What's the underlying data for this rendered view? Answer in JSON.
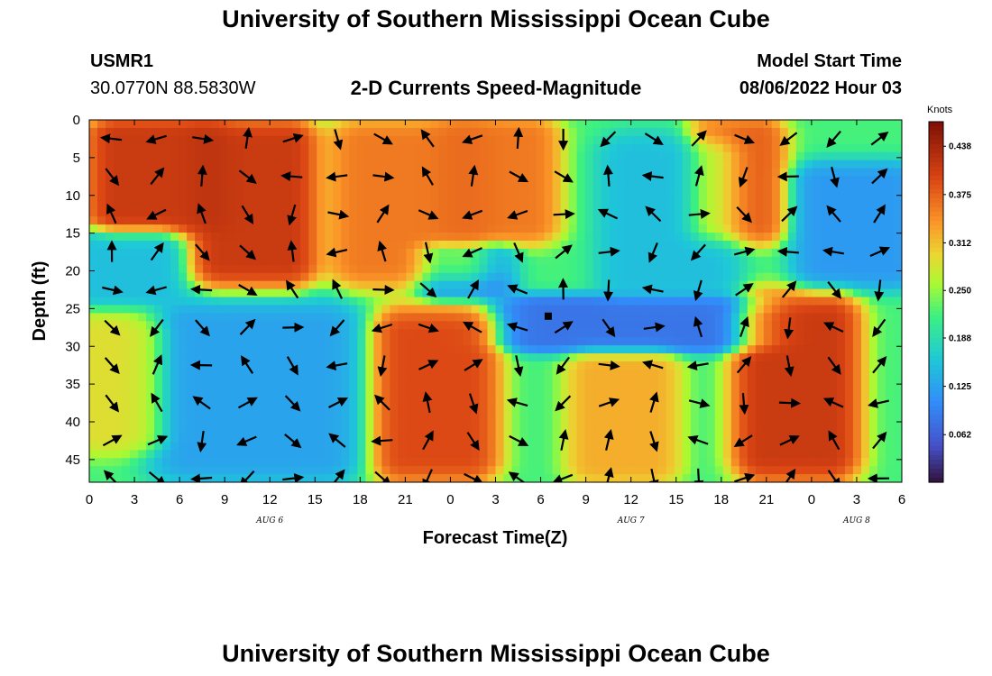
{
  "page_title": "University of Southern Mississippi Ocean Cube",
  "footer_title": "University of Southern Mississippi Ocean Cube",
  "station": {
    "id": "USMR1",
    "coords": "30.0770N  88.5830W"
  },
  "model": {
    "label": "Model Start Time",
    "value": "08/06/2022 Hour 03"
  },
  "chart_data": {
    "type": "heatmap",
    "title": "2-D Currents Speed-Magnitude",
    "xlabel": "Forecast Time(Z)",
    "ylabel": "Depth (ft)",
    "xlim": [
      0,
      54
    ],
    "ylim": [
      0,
      48
    ],
    "x_tick_labels": [
      "0",
      "3",
      "6",
      "9",
      "12",
      "15",
      "18",
      "21",
      "0",
      "3",
      "6",
      "9",
      "12",
      "15",
      "18",
      "21",
      "0",
      "3",
      "6"
    ],
    "y_ticks": [
      0,
      5,
      10,
      15,
      20,
      25,
      30,
      35,
      40,
      45
    ],
    "date_labels": [
      {
        "text": "AUG 6",
        "hour": 12
      },
      {
        "text": "AUG 7",
        "hour": 36
      },
      {
        "text": "AUG 8",
        "hour": 51
      }
    ],
    "colorbar": {
      "title": "Knots",
      "min": 0.0,
      "max": 0.47,
      "tick_labels": [
        "0.438",
        "0.375",
        "0.312",
        "0.250",
        "0.188",
        "0.125",
        "0.062"
      ],
      "tick_values": [
        0.438,
        0.375,
        0.312,
        0.25,
        0.188,
        0.125,
        0.062
      ]
    },
    "speed_regions_knots": [
      {
        "hours": [
          1,
          8
        ],
        "depth_ft": [
          0,
          15
        ],
        "speed": 0.44
      },
      {
        "hours": [
          8,
          14
        ],
        "depth_ft": [
          0,
          22
        ],
        "speed": 0.44
      },
      {
        "hours": [
          0,
          5
        ],
        "depth_ft": [
          15,
          24
        ],
        "speed": 0.14
      },
      {
        "hours": [
          5,
          17
        ],
        "depth_ft": [
          24,
          48
        ],
        "speed": 0.11
      },
      {
        "hours": [
          0,
          4
        ],
        "depth_ft": [
          26,
          44
        ],
        "speed": 0.3
      },
      {
        "hours": [
          17,
          26
        ],
        "depth_ft": [
          0,
          22
        ],
        "speed": 0.38
      },
      {
        "hours": [
          20,
          26
        ],
        "depth_ft": [
          25,
          48
        ],
        "speed": 0.42
      },
      {
        "hours": [
          24,
          30
        ],
        "depth_ft": [
          0,
          16
        ],
        "speed": 0.38
      },
      {
        "hours": [
          23,
          27
        ],
        "depth_ft": [
          17,
          23
        ],
        "speed": 0.08
      },
      {
        "hours": [
          28,
          44
        ],
        "depth_ft": [
          24,
          30
        ],
        "speed": 0.06
      },
      {
        "hours": [
          35,
          42
        ],
        "depth_ft": [
          2,
          24
        ],
        "speed": 0.14
      },
      {
        "hours": [
          33,
          38
        ],
        "depth_ft": [
          31,
          48
        ],
        "speed": 0.34
      },
      {
        "hours": [
          41,
          45
        ],
        "depth_ft": [
          0,
          16
        ],
        "speed": 0.4
      },
      {
        "hours": [
          44,
          50
        ],
        "depth_ft": [
          23,
          48
        ],
        "speed": 0.44
      },
      {
        "hours": [
          48,
          54
        ],
        "depth_ft": [
          6,
          22
        ],
        "speed": 0.1
      }
    ],
    "marker": {
      "hour": 30.5,
      "depth_ft": 26
    }
  }
}
